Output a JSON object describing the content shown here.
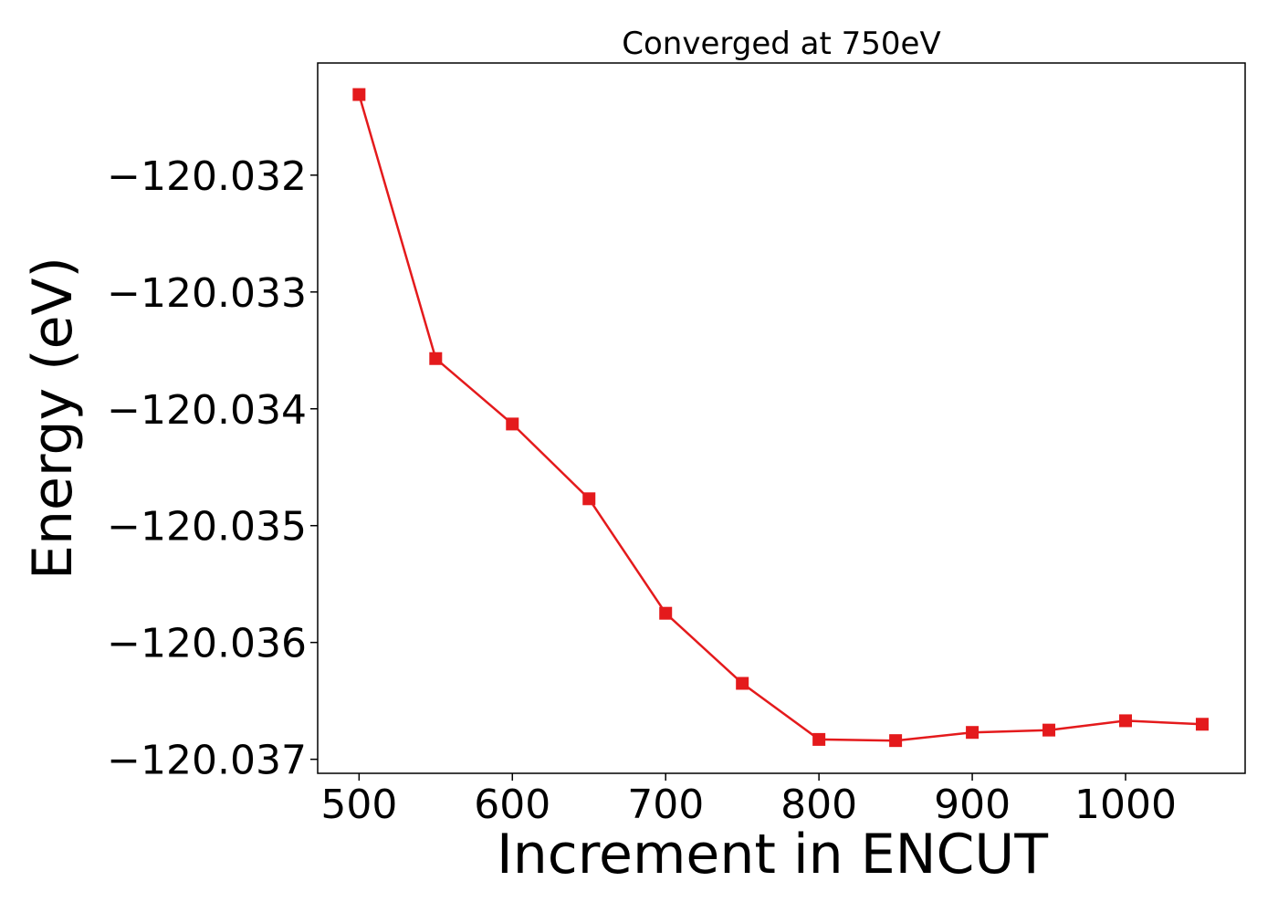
{
  "chart_data": {
    "type": "line",
    "title": "Converged at 750eV",
    "xlabel": "Increment in ENCUT",
    "ylabel": "Energy (eV)",
    "x": [
      500,
      550,
      600,
      650,
      700,
      750,
      800,
      850,
      900,
      950,
      1000,
      1050
    ],
    "series": [
      {
        "values": [
          -120.03131,
          -120.03357,
          -120.03413,
          -120.03477,
          -120.03575,
          -120.03635,
          -120.03683,
          -120.03684,
          -120.03677,
          -120.03675,
          -120.03667,
          -120.0367
        ],
        "color": "#e41a1c",
        "marker": "square"
      }
    ],
    "xticks": [
      500,
      600,
      700,
      800,
      900,
      1000
    ],
    "xtick_labels": [
      "500",
      "600",
      "700",
      "800",
      "900",
      "1000"
    ],
    "yticks": [
      -120.032,
      -120.033,
      -120.034,
      -120.035,
      -120.036,
      -120.037
    ],
    "ytick_labels": [
      "−120.032",
      "−120.033",
      "−120.034",
      "−120.035",
      "−120.036",
      "−120.037"
    ],
    "xlim": [
      473,
      1078
    ],
    "ylim": [
      -120.03712,
      -120.03104
    ],
    "grid": false,
    "legend": "none"
  }
}
